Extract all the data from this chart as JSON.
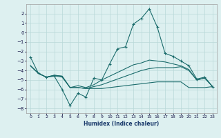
{
  "xlabel": "Humidex (Indice chaleur)",
  "x": [
    0,
    1,
    2,
    3,
    4,
    5,
    6,
    7,
    8,
    9,
    10,
    11,
    12,
    13,
    14,
    15,
    16,
    17,
    18,
    19,
    20,
    21,
    22,
    23
  ],
  "line1": [
    -2.6,
    -4.3,
    -4.7,
    -4.6,
    -6.0,
    -7.7,
    -6.4,
    -6.8,
    -4.8,
    -5.0,
    -3.3,
    -1.7,
    -1.5,
    0.9,
    1.5,
    2.5,
    0.6,
    -2.2,
    -2.5,
    -3.0,
    -3.5,
    -4.9,
    -4.7,
    -5.7
  ],
  "line2": [
    -3.5,
    -4.3,
    -4.7,
    -4.55,
    -4.7,
    -5.8,
    -5.8,
    -5.9,
    -5.9,
    -5.9,
    -5.8,
    -5.7,
    -5.6,
    -5.5,
    -5.4,
    -5.3,
    -5.2,
    -5.2,
    -5.2,
    -5.2,
    -5.8,
    -5.8,
    -5.8,
    -5.7
  ],
  "line3": [
    -3.5,
    -4.3,
    -4.7,
    -4.5,
    -4.6,
    -5.8,
    -5.8,
    -5.9,
    -5.7,
    -5.5,
    -5.2,
    -4.9,
    -4.6,
    -4.3,
    -4.0,
    -3.8,
    -3.7,
    -3.7,
    -3.7,
    -3.6,
    -4.0,
    -5.0,
    -4.8,
    -5.7
  ],
  "line4": [
    -3.5,
    -4.3,
    -4.7,
    -4.5,
    -4.6,
    -5.8,
    -5.6,
    -5.8,
    -5.5,
    -5.0,
    -4.6,
    -4.2,
    -3.8,
    -3.4,
    -3.2,
    -2.9,
    -3.0,
    -3.1,
    -3.3,
    -3.5,
    -3.9,
    -5.0,
    -4.8,
    -5.7
  ],
  "ylim": [
    -8.5,
    3.0
  ],
  "yticks": [
    -8,
    -7,
    -6,
    -5,
    -4,
    -3,
    -2,
    -1,
    0,
    1,
    2
  ],
  "color": "#1a6b6b",
  "bg_color": "#ddf0f0",
  "grid_color": "#b8d8d8",
  "spine_color": "#a0a0a0"
}
